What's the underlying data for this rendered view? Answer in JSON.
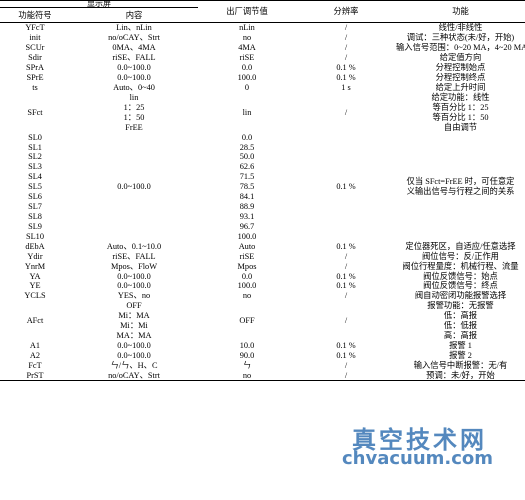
{
  "headers": {
    "display_group": "显示屏",
    "code": "功能符号",
    "content": "内容",
    "factory": "出厂调节值",
    "resolution": "分辨率",
    "function": "功能"
  },
  "rows": [
    {
      "code": "YFcT",
      "content": "Lin、nLin",
      "factory": "nLin",
      "res": "/",
      "func": "线性/非线性"
    },
    {
      "code": "init",
      "content": "no/oCAY、Strt",
      "factory": "no",
      "res": "/",
      "func": "调试：三种状态(未/好，开始)"
    },
    {
      "code": "SCUr",
      "content": "0MA、4MA",
      "factory": "4MA",
      "res": "/",
      "func": "输入信号范围：0~20 MA，4~20 MA"
    },
    {
      "code": "Sdir",
      "content": "riSE、FALL",
      "factory": "riSE",
      "res": "/",
      "func": "给定值方向"
    },
    {
      "code": "SPrA",
      "content": "0.0~100.0",
      "factory": "0.0",
      "res": "0.1 %",
      "func": "分程控制始点"
    },
    {
      "code": "SPrE",
      "content": "0.0~100.0",
      "factory": "100.0",
      "res": "0.1 %",
      "func": "分程控制终点"
    },
    {
      "code": "ts",
      "content": "Auto、0~40",
      "factory": "0",
      "res": "1 s",
      "func": "给定上升时间"
    }
  ],
  "sfct": {
    "code": "SFct",
    "content_lines": [
      "lin",
      "1：25",
      "1：50",
      "FrEE"
    ],
    "factory": "lin",
    "res": "/",
    "func_lines": [
      "给定功能：线性",
      "等百分比 1：25",
      "等百分比 1：50",
      "自由调节"
    ]
  },
  "sl": {
    "codes": [
      "SL0",
      "SL1",
      "SL2",
      "SL3",
      "SL4",
      "SL5",
      "SL6",
      "SL7",
      "SL8",
      "SL9",
      "SL10"
    ],
    "content": "0.0~100.0",
    "factory": [
      "0.0",
      "28.5",
      "50.0",
      "62.6",
      "71.5",
      "78.5",
      "84.1",
      "88.9",
      "93.1",
      "96.7",
      "100.0"
    ],
    "res": "0.1 %",
    "func_lines": [
      "仅当 SFct=FrEE 时，可任意定",
      "义输出信号与行程之间的关系"
    ]
  },
  "rows2": [
    {
      "code": "dEbA",
      "content": "Auto、0.1~10.0",
      "factory": "Auto",
      "res": "0.1 %",
      "func": "定位器死区，自适应/任意选择"
    },
    {
      "code": "Ydir",
      "content": "riSE、FALL",
      "factory": "riSE",
      "res": "/",
      "func": "阀位信号：反/正作用"
    },
    {
      "code": "YnrM",
      "content": "Mpos、FloW",
      "factory": "Mpos",
      "res": "/",
      "func": "阀位行程量度：机械行程、流量"
    },
    {
      "code": "YA",
      "content": "0.0~100.0",
      "factory": "0.0",
      "res": "0.1 %",
      "func": "阀位反馈信号：始点"
    },
    {
      "code": "YE",
      "content": "0.0~100.0",
      "factory": "100.0",
      "res": "0.1 %",
      "func": "阀位反馈信号：终点"
    },
    {
      "code": "YCLS",
      "content": "YES、no",
      "factory": "no",
      "res": "/",
      "func": "阀自动密闭功能报警选择"
    }
  ],
  "afct": {
    "code": "AFct",
    "content_lines": [
      "OFF",
      "Mi：MA",
      "Mi：Mi",
      "MA：MA"
    ],
    "factory": "OFF",
    "res": "/",
    "func_lines": [
      "报警功能：无报警",
      "低：高报",
      "低：低报",
      "高：高报"
    ]
  },
  "rows3": [
    {
      "code": "A1",
      "content": "0.0~100.0",
      "factory": "10.0",
      "res": "0.1 %",
      "func": "报警 1"
    },
    {
      "code": "A2",
      "content": "0.0~100.0",
      "factory": "90.0",
      "res": "0.1 %",
      "func": "报警 2"
    },
    {
      "code": "FcT",
      "content": "ㄣ/ㄣ、H、C",
      "factory": "ㄣ",
      "res": "/",
      "func": "输入信号中断报警：无/有"
    },
    {
      "code": "PrST",
      "content": "no/oCAY、Strt",
      "factory": "no",
      "res": "/",
      "func": "预调：未/好，开始"
    }
  ],
  "watermark": {
    "cn": "真空技术网",
    "url": "chvacuum.com"
  }
}
